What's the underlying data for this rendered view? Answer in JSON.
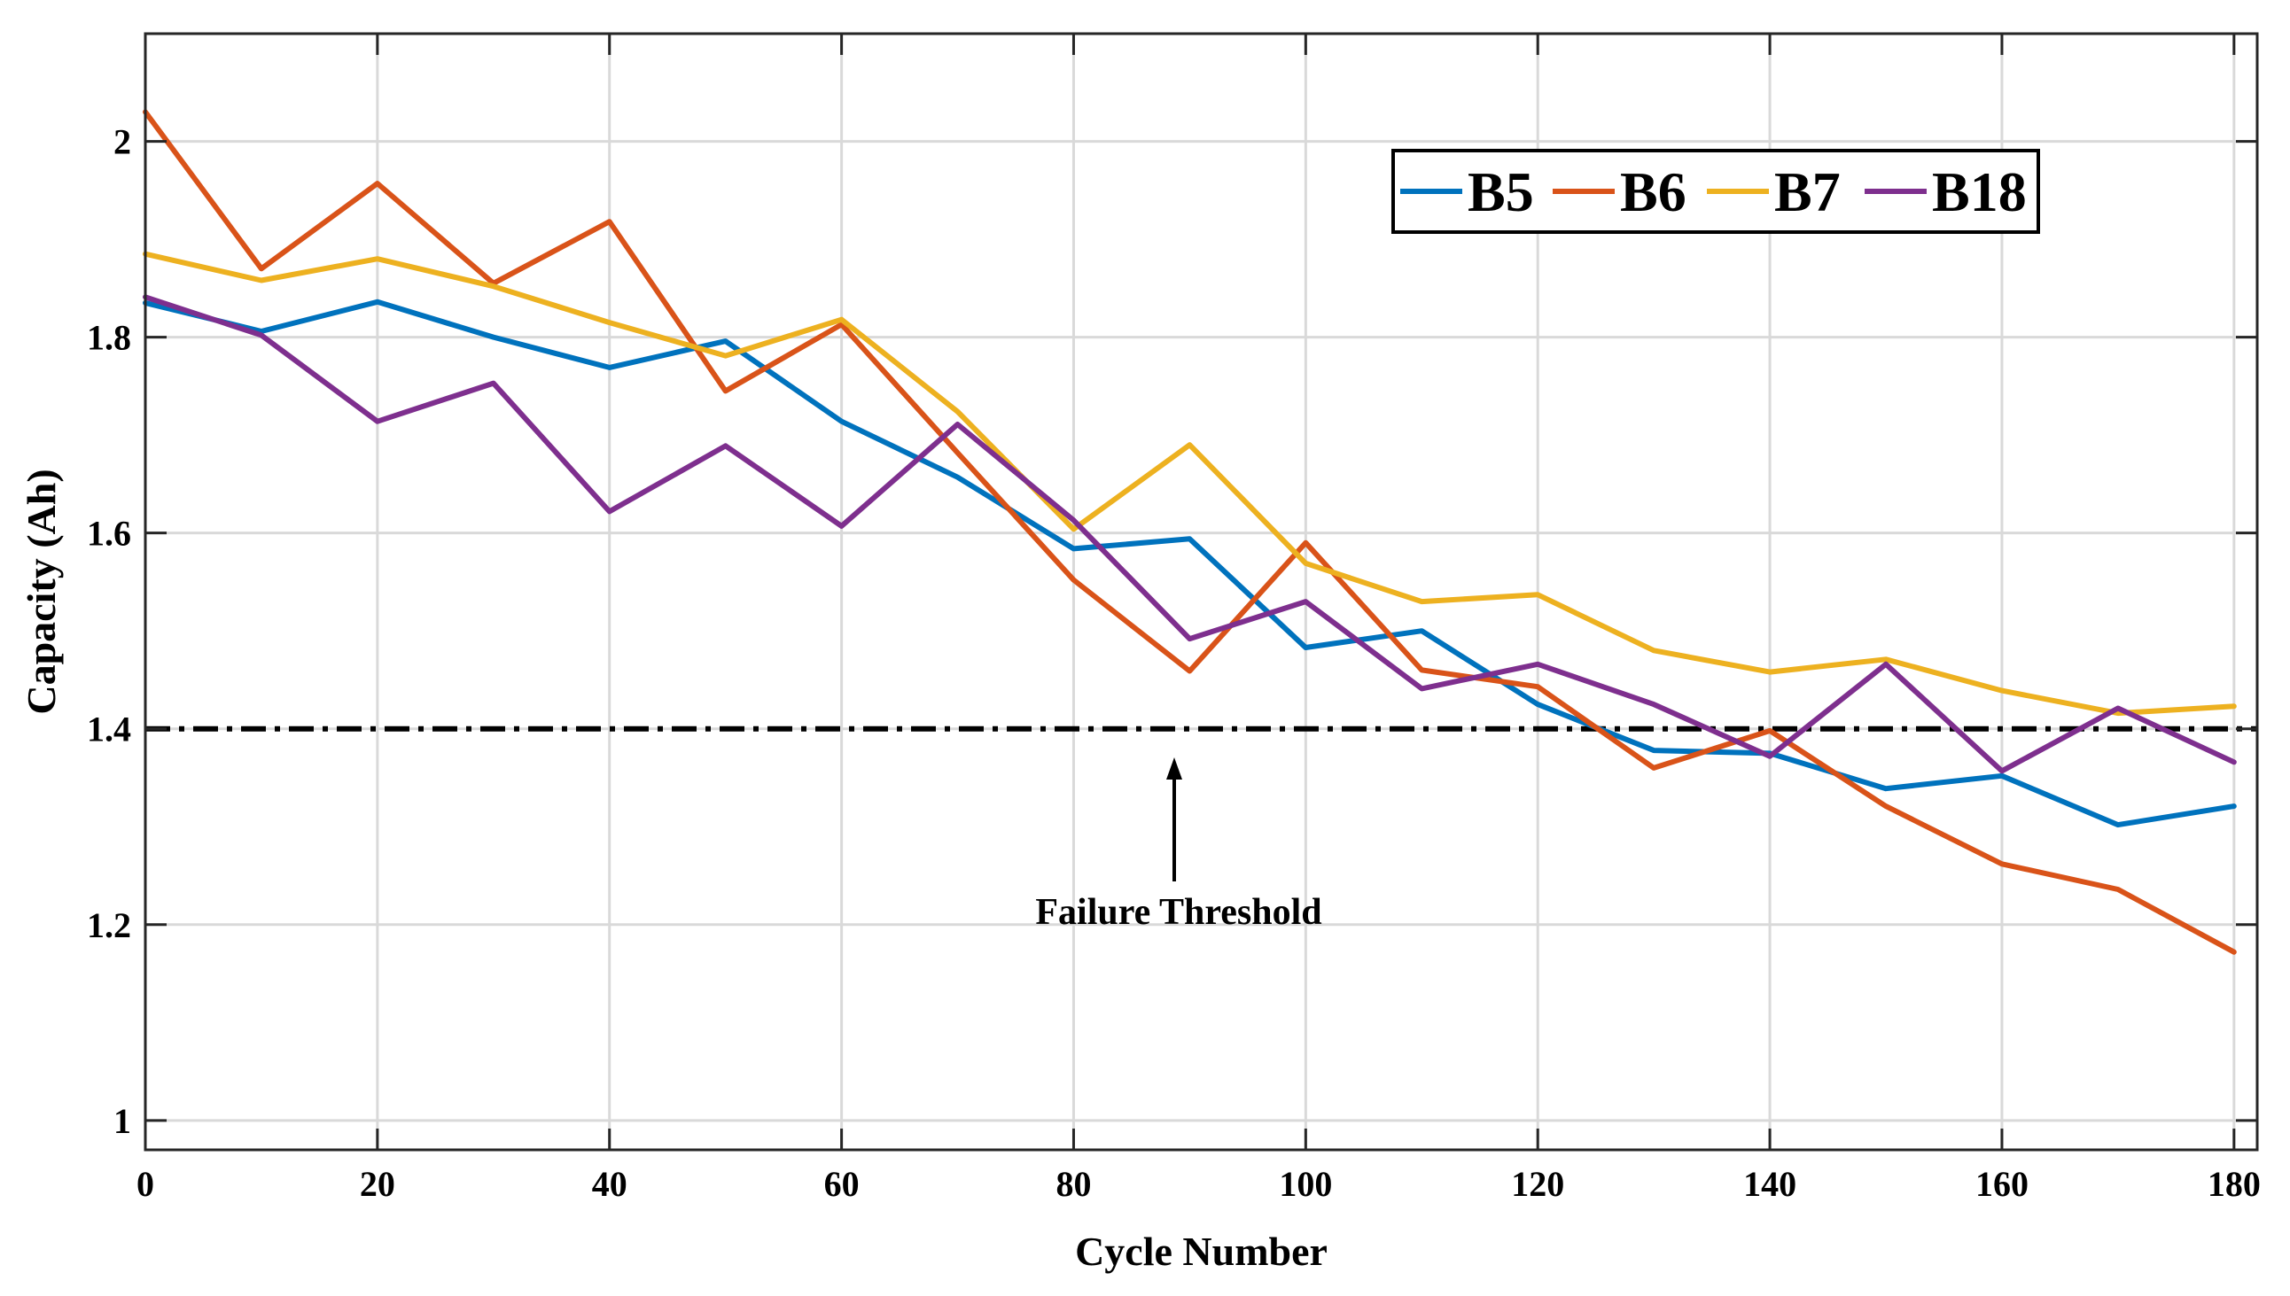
{
  "chart_data": {
    "type": "line",
    "title": "",
    "xlabel": "Cycle Number",
    "ylabel": "Capacity (Ah)",
    "xlim": [
      0,
      182
    ],
    "ylim": [
      0.97,
      2.11
    ],
    "xticks": [
      0,
      20,
      40,
      60,
      80,
      100,
      120,
      140,
      160,
      180
    ],
    "yticks": [
      1,
      1.2,
      1.4,
      1.6,
      1.8,
      2
    ],
    "ytick_labels": [
      "1",
      "1.2",
      "1.4",
      "1.6",
      "1.8",
      "2"
    ],
    "grid": true,
    "legend_position": "top-right",
    "x": [
      0,
      10,
      20,
      30,
      40,
      50,
      60,
      70,
      80,
      90,
      100,
      110,
      120,
      130,
      140,
      150,
      160,
      170,
      180
    ],
    "series": [
      {
        "name": "B5",
        "color": "#0072BD",
        "values": [
          1.835,
          1.806,
          1.836,
          1.8,
          1.769,
          1.796,
          1.714,
          1.657,
          1.584,
          1.594,
          1.483,
          1.5,
          1.425,
          1.378,
          1.375,
          1.339,
          1.352,
          1.302,
          1.321
        ]
      },
      {
        "name": "B6",
        "color": "#D95319",
        "values": [
          2.03,
          1.87,
          1.957,
          1.855,
          1.918,
          1.745,
          1.813,
          1.682,
          1.552,
          1.459,
          1.59,
          1.46,
          1.443,
          1.36,
          1.398,
          1.321,
          1.262,
          1.236,
          1.172
        ]
      },
      {
        "name": "B7",
        "color": "#EDB120",
        "values": [
          1.885,
          1.858,
          1.88,
          1.852,
          1.815,
          1.781,
          1.818,
          1.724,
          1.604,
          1.69,
          1.569,
          1.53,
          1.537,
          1.48,
          1.458,
          1.471,
          1.439,
          1.416,
          1.423
        ]
      },
      {
        "name": "B18",
        "color": "#7E2F8E",
        "values": [
          1.841,
          1.802,
          1.714,
          1.753,
          1.622,
          1.689,
          1.607,
          1.711,
          1.613,
          1.492,
          1.53,
          1.441,
          1.466,
          1.425,
          1.372,
          1.466,
          1.357,
          1.421,
          1.366
        ]
      }
    ],
    "threshold": {
      "value": 1.4,
      "label": "Failure Threshold"
    }
  }
}
